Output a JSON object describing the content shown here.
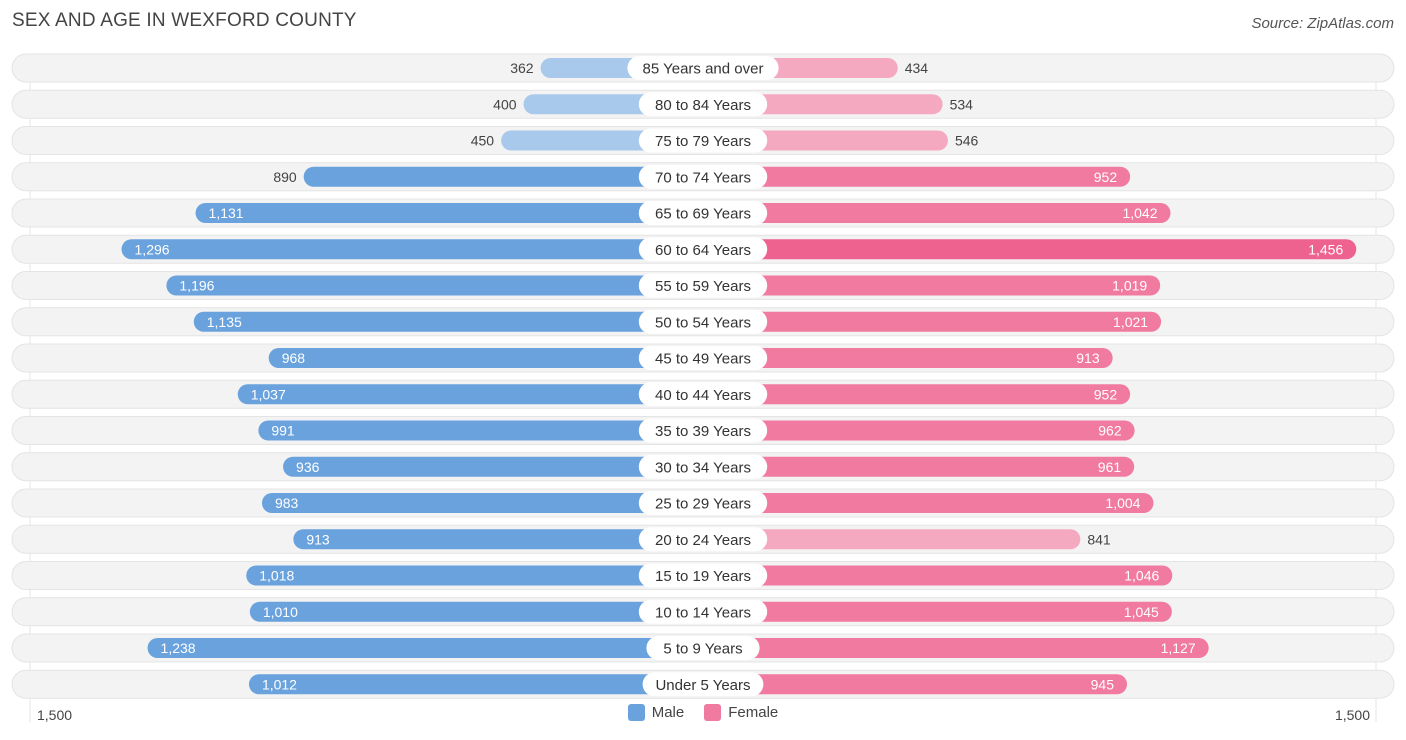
{
  "header": {
    "title": "SEX AND AGE IN WEXFORD COUNTY",
    "source": "Source: ZipAtlas.com"
  },
  "axis": {
    "left_label": "1,500",
    "right_label": "1,500"
  },
  "legend": {
    "male": "Male",
    "female": "Female"
  },
  "colors": {
    "male_strong": "#6aa2dd",
    "male_light": "#a9c9ec",
    "female_strong": "#f07aa0",
    "female_light": "#f5a9c1",
    "female_max": "#ee6290"
  },
  "chart_data": {
    "type": "bar",
    "title": "SEX AND AGE IN WEXFORD COUNTY",
    "orientation": "horizontal-butterfly",
    "xlim": [
      -1500,
      1500
    ],
    "categories": [
      "85 Years and over",
      "80 to 84 Years",
      "75 to 79 Years",
      "70 to 74 Years",
      "65 to 69 Years",
      "60 to 64 Years",
      "55 to 59 Years",
      "50 to 54 Years",
      "45 to 49 Years",
      "40 to 44 Years",
      "35 to 39 Years",
      "30 to 34 Years",
      "25 to 29 Years",
      "20 to 24 Years",
      "15 to 19 Years",
      "10 to 14 Years",
      "5 to 9 Years",
      "Under 5 Years"
    ],
    "series": [
      {
        "name": "Male",
        "values": [
          362,
          400,
          450,
          890,
          1131,
          1296,
          1196,
          1135,
          968,
          1037,
          991,
          936,
          983,
          913,
          1018,
          1010,
          1238,
          1012
        ],
        "labels": [
          "362",
          "400",
          "450",
          "890",
          "1,131",
          "1,296",
          "1,196",
          "1,135",
          "968",
          "1,037",
          "991",
          "936",
          "983",
          "913",
          "1,018",
          "1,010",
          "1,238",
          "1,012"
        ]
      },
      {
        "name": "Female",
        "values": [
          434,
          534,
          546,
          952,
          1042,
          1456,
          1019,
          1021,
          913,
          952,
          962,
          961,
          1004,
          841,
          1046,
          1045,
          1127,
          945
        ],
        "labels": [
          "434",
          "534",
          "546",
          "952",
          "1,042",
          "1,456",
          "1,019",
          "1,021",
          "913",
          "952",
          "962",
          "961",
          "1,004",
          "841",
          "1,046",
          "1,045",
          "1,127",
          "945"
        ]
      }
    ],
    "legend_position": "bottom-center"
  }
}
